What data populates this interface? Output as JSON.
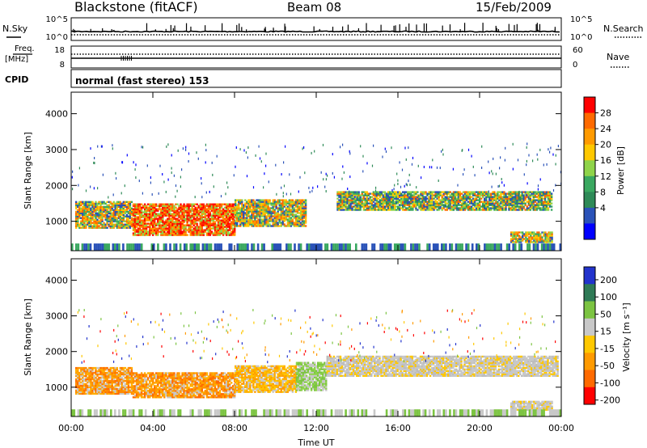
{
  "header": {
    "station": "Blackstone (fitACF)",
    "beam": "Beam 08",
    "date": "15/Feb/2009"
  },
  "noise_panel": {
    "left_label": "N.Sky",
    "right_label": "N.Search",
    "left_ticks": [
      "10^5",
      "10^0"
    ],
    "right_ticks": [
      "10^5",
      "10^0"
    ]
  },
  "freq_panel": {
    "left_label_line1": "Freq.",
    "left_label_line2": "[MHz]",
    "right_label": "Nave",
    "left_ticks": [
      "18",
      "8"
    ],
    "right_ticks": [
      "60",
      "0"
    ]
  },
  "cpid": {
    "label": "CPID",
    "value": "normal (fast stereo) 153"
  },
  "chart_data": [
    {
      "type": "heatmap",
      "quantity": "Power",
      "ylabel": "Slant Range [km]",
      "xlabel": "Time UT",
      "ylim": [
        180,
        4600
      ],
      "yticks": [
        "4000",
        "3000",
        "2000",
        "1000"
      ],
      "ytick_values": [
        4000,
        3000,
        2000,
        1000
      ],
      "xlim": [
        0,
        24
      ],
      "xticks": [
        "00:00",
        "04:00",
        "08:00",
        "12:00",
        "16:00",
        "20:00",
        "00:00"
      ],
      "xtick_values": [
        0,
        4,
        8,
        12,
        16,
        20,
        24
      ],
      "colorbar": {
        "label": "Power [dB]",
        "tick_labels": [
          "28",
          "24",
          "20",
          "16",
          "12",
          "8",
          "4"
        ],
        "colors": [
          "#ff0000",
          "#ff6a00",
          "#ff9a00",
          "#ffc800",
          "#8fd44a",
          "#3aa860",
          "#2e8a57",
          "#2a52b8",
          "#0000ff"
        ]
      },
      "regions": [
        {
          "t": [
            0.2,
            3.0
          ],
          "r": [
            800,
            1550
          ],
          "level": "mid"
        },
        {
          "t": [
            3.0,
            8.0
          ],
          "r": [
            600,
            1500
          ],
          "level": "high"
        },
        {
          "t": [
            8.0,
            11.5
          ],
          "r": [
            850,
            1600
          ],
          "level": "mid"
        },
        {
          "t": [
            13.0,
            23.5
          ],
          "r": [
            1300,
            1800
          ],
          "level": "low"
        },
        {
          "t": [
            21.5,
            23.5
          ],
          "r": [
            400,
            700
          ],
          "level": "mid"
        }
      ]
    },
    {
      "type": "heatmap",
      "quantity": "Velocity",
      "ylabel": "Slant Range [km]",
      "xlabel": "Time UT",
      "ylim": [
        180,
        4600
      ],
      "yticks": [
        "4000",
        "3000",
        "2000",
        "1000"
      ],
      "ytick_values": [
        4000,
        3000,
        2000,
        1000
      ],
      "xlim": [
        0,
        24
      ],
      "xticks": [
        "00:00",
        "04:00",
        "08:00",
        "12:00",
        "16:00",
        "20:00",
        "00:00"
      ],
      "xtick_values": [
        0,
        4,
        8,
        12,
        16,
        20,
        24
      ],
      "colorbar": {
        "label": "Velocity [m s⁻¹]",
        "tick_labels": [
          "200",
          "100",
          "50",
          "15",
          "-15",
          "-50",
          "-100",
          "-200"
        ],
        "colors": [
          "#2233cc",
          "#2f7a56",
          "#7cc442",
          "#c8c8c8",
          "#ffc800",
          "#ff9a00",
          "#ff6a00",
          "#ff0000"
        ]
      },
      "regions": [
        {
          "t": [
            0.2,
            3.0
          ],
          "r": [
            800,
            1550
          ],
          "level": "neg"
        },
        {
          "t": [
            3.0,
            8.0
          ],
          "r": [
            700,
            1400
          ],
          "level": "neg"
        },
        {
          "t": [
            8.0,
            11.0
          ],
          "r": [
            850,
            1600
          ],
          "level": "negsmall"
        },
        {
          "t": [
            11.0,
            12.5
          ],
          "r": [
            900,
            1700
          ],
          "level": "pos"
        },
        {
          "t": [
            12.5,
            23.8
          ],
          "r": [
            1300,
            1850
          ],
          "level": "zero"
        },
        {
          "t": [
            21.5,
            23.5
          ],
          "r": [
            350,
            600
          ],
          "level": "zero"
        }
      ]
    }
  ]
}
